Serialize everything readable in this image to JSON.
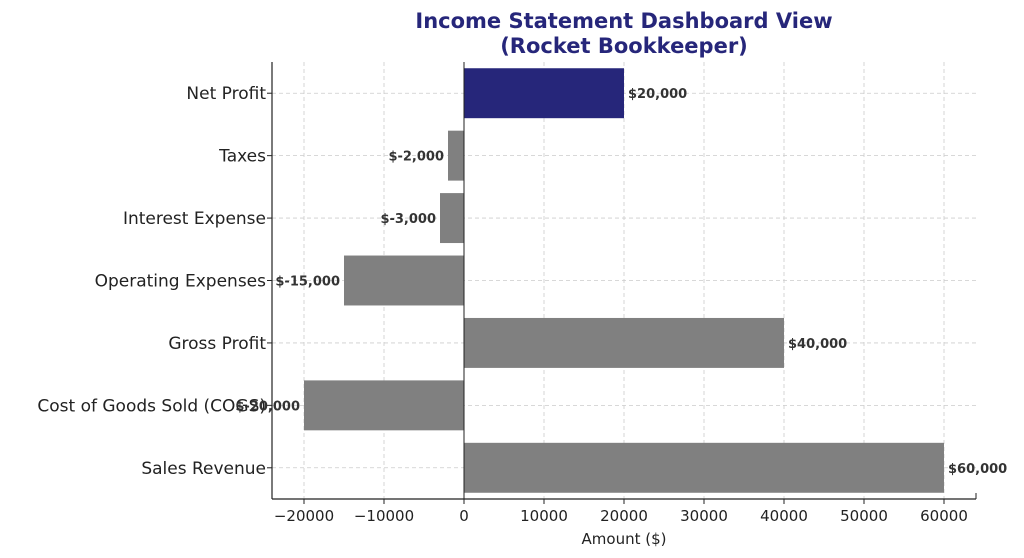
{
  "chart_data": {
    "type": "bar",
    "orientation": "horizontal",
    "title_line1": "Income Statement Dashboard View",
    "title_line2": "(Rocket Bookkeeper)",
    "xlabel": "Amount ($)",
    "ylabel": "",
    "categories": [
      "Sales Revenue",
      "Cost of Goods Sold (COGS)",
      "Gross Profit",
      "Operating Expenses",
      "Interest Expense",
      "Taxes",
      "Net Profit"
    ],
    "values": [
      60000,
      -20000,
      40000,
      -15000,
      -3000,
      -2000,
      20000
    ],
    "data_labels": [
      "$60,000",
      "$-20,000",
      "$40,000",
      "$-15,000",
      "$-3,000",
      "$-2,000",
      "$20,000"
    ],
    "bar_colors": [
      "#808080",
      "#808080",
      "#808080",
      "#808080",
      "#808080",
      "#808080",
      "#26267a"
    ],
    "xlim": [
      -24000,
      64000
    ],
    "xticks": [
      -20000,
      -10000,
      0,
      10000,
      20000,
      30000,
      40000,
      50000,
      60000
    ],
    "xtick_labels": [
      "−20000",
      "−10000",
      "0",
      "10000",
      "20000",
      "30000",
      "40000",
      "50000",
      "60000"
    ],
    "grid": true,
    "title_color": "#26267a"
  }
}
